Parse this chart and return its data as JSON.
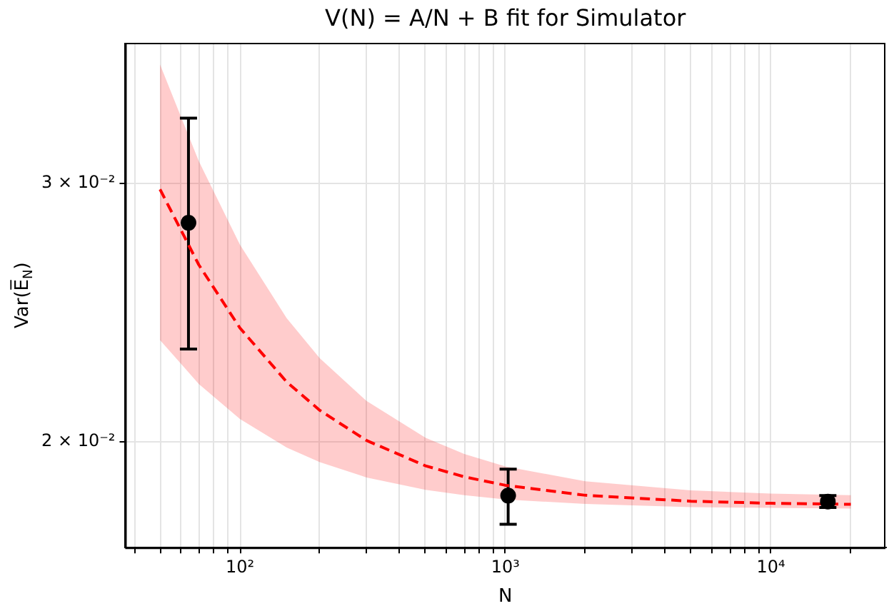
{
  "chart_data": {
    "type": "scatter",
    "title": "V(N) = A/N + B fit for Simulator",
    "xlabel": "N",
    "ylabel": "Var(E̅$_{N}$)",
    "log": "xy",
    "grid": true,
    "legend": false,
    "xlim": [
      37,
      27000
    ],
    "ylim": [
      0.01694,
      0.0374
    ],
    "xticks": [
      {
        "value": 40,
        "label": null
      },
      {
        "value": 50,
        "label": null
      },
      {
        "value": 60,
        "label": null
      },
      {
        "value": 70,
        "label": null
      },
      {
        "value": 80,
        "label": null
      },
      {
        "value": 90,
        "label": null
      },
      {
        "value": 100,
        "label": "10²"
      },
      {
        "value": 200,
        "label": null
      },
      {
        "value": 300,
        "label": null
      },
      {
        "value": 400,
        "label": null
      },
      {
        "value": 500,
        "label": null
      },
      {
        "value": 600,
        "label": null
      },
      {
        "value": 700,
        "label": null
      },
      {
        "value": 800,
        "label": null
      },
      {
        "value": 900,
        "label": null
      },
      {
        "value": 1000,
        "label": "10³"
      },
      {
        "value": 2000,
        "label": null
      },
      {
        "value": 3000,
        "label": null
      },
      {
        "value": 4000,
        "label": null
      },
      {
        "value": 5000,
        "label": null
      },
      {
        "value": 6000,
        "label": null
      },
      {
        "value": 7000,
        "label": null
      },
      {
        "value": 8000,
        "label": null
      },
      {
        "value": 9000,
        "label": null
      },
      {
        "value": 10000,
        "label": "10⁴"
      },
      {
        "value": 20000,
        "label": null
      }
    ],
    "yticks": [
      {
        "value": 0.02,
        "label": "2 × 10⁻²"
      },
      {
        "value": 0.03,
        "label": "3 × 10⁻²"
      }
    ],
    "series": [
      {
        "type": "scatter",
        "color": "#000000",
        "marker": "circle",
        "x": [
          64,
          1024,
          16384
        ],
        "values": [
          0.0282,
          0.01838,
          0.01821
        ],
        "errors": [
          [
            0.02313,
            0.03323
          ],
          [
            0.01757,
            0.01916
          ],
          [
            0.01804,
            0.01838
          ]
        ]
      },
      {
        "type": "line",
        "color": "#ff0000",
        "line_style": "dashed",
        "marker": "none",
        "x": [
          50,
          70,
          100,
          150,
          200,
          300,
          500,
          700,
          1000,
          2000,
          5000,
          10000,
          20000
        ],
        "values": [
          0.02972,
          0.0264,
          0.02391,
          0.02197,
          0.02101,
          0.02004,
          0.01926,
          0.01893,
          0.01868,
          0.01839,
          0.01822,
          0.01816,
          0.01813
        ],
        "upper": [
          0.03615,
          0.03106,
          0.02725,
          0.02428,
          0.0228,
          0.02132,
          0.02013,
          0.01962,
          0.01924,
          0.0188,
          0.01853,
          0.01844,
          0.01839
        ],
        "lower": [
          0.02346,
          0.0219,
          0.02073,
          0.01982,
          0.01937,
          0.01891,
          0.01855,
          0.01839,
          0.01827,
          0.01814,
          0.01805,
          0.01803,
          0.01801
        ]
      }
    ]
  }
}
